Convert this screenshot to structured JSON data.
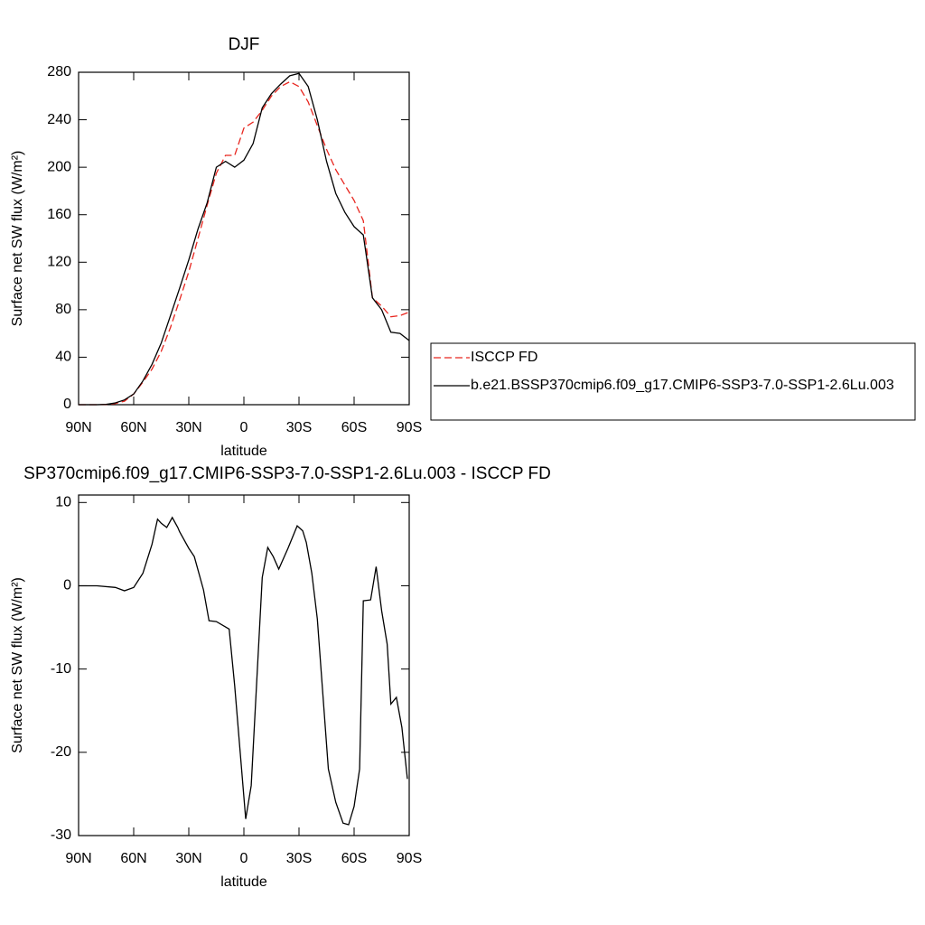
{
  "chart_data": [
    {
      "type": "line",
      "title": "DJF",
      "xlabel": "latitude",
      "ylabel": "Surface net SW flux (W/m²)",
      "x": [
        90,
        85,
        80,
        75,
        70,
        65,
        60,
        55,
        50,
        45,
        40,
        35,
        30,
        25,
        20,
        15,
        10,
        5,
        0,
        -5,
        -10,
        -15,
        -20,
        -25,
        -30,
        -35,
        -40,
        -45,
        -50,
        -55,
        -60,
        -65,
        -70,
        -75,
        -80,
        -85,
        -90
      ],
      "series": [
        {
          "name": "ISCCP FD",
          "color": "#e8261f",
          "dash": true,
          "values": [
            0,
            0,
            0,
            0.2,
            1,
            3,
            9,
            19,
            30,
            45,
            65,
            88,
            112,
            140,
            168,
            195,
            210,
            210,
            233,
            238,
            248,
            260,
            268,
            272,
            268,
            255,
            235,
            215,
            198,
            185,
            172,
            155,
            90,
            83,
            74,
            75,
            78
          ]
        },
        {
          "name": "b.e21.BSSP370cmip6.f09_g17.CMIP6-SSP3-7.0-SSP1-2.6Lu.003",
          "color": "#000000",
          "dash": false,
          "values": [
            0,
            0,
            0,
            0.3,
            1.5,
            4,
            9,
            20,
            34,
            52,
            75,
            98,
            122,
            148,
            170,
            200,
            205,
            200,
            206,
            220,
            250,
            262,
            270,
            277,
            279,
            268,
            240,
            205,
            178,
            162,
            150,
            143,
            90,
            80,
            61,
            60,
            54
          ]
        }
      ],
      "xlim": [
        90,
        -90
      ],
      "xticks": [
        {
          "value": 90,
          "label": "90N"
        },
        {
          "value": 60,
          "label": "60N"
        },
        {
          "value": 30,
          "label": "30N"
        },
        0,
        {
          "value": -30,
          "label": "30S"
        },
        {
          "value": -60,
          "label": "60S"
        },
        {
          "value": -90,
          "label": "90S"
        }
      ],
      "ylim": [
        0,
        280
      ],
      "yticks": [
        0,
        40,
        80,
        120,
        160,
        200,
        240,
        280
      ],
      "legend": "right"
    },
    {
      "type": "line",
      "title": "SP370cmip6.f09_g17.CMIP6-SSP3-7.0-SSP1-2.6Lu.003 - ISCCP FD",
      "xlabel": "latitude",
      "ylabel": "Surface net SW flux (W/m²)",
      "x": [
        90,
        80,
        70,
        65,
        60,
        55,
        50,
        47,
        45,
        42,
        39,
        36,
        35,
        30,
        27,
        22,
        19,
        15,
        8,
        5,
        2,
        -1,
        -4,
        -10,
        -13,
        -16,
        -19,
        -24,
        -29,
        -32,
        -34,
        -37,
        -40,
        -43,
        -46,
        -50,
        -54,
        -57,
        -60,
        -63,
        -65,
        -69,
        -72,
        -75,
        -78,
        -80,
        -83,
        -86,
        -89
      ],
      "values": [
        0,
        0,
        -0.2,
        -0.6,
        -0.2,
        1.5,
        5,
        8,
        7.5,
        7,
        8.2,
        7,
        6.5,
        4.5,
        3.5,
        -0.5,
        -4.2,
        -4.3,
        -5.2,
        -12,
        -20,
        -28,
        -24,
        1,
        4.6,
        3.5,
        2,
        4.5,
        7.2,
        6.6,
        5.2,
        1.5,
        -4,
        -13,
        -22,
        -26,
        -28.5,
        -28.7,
        -26.5,
        -22,
        -1.8,
        -1.7,
        2.3,
        -3,
        -7,
        -14.2,
        -13.4,
        -17,
        -23.2
      ],
      "color": "#000000",
      "xlim": [
        90,
        -90
      ],
      "xticks": [
        {
          "value": 90,
          "label": "90N"
        },
        {
          "value": 60,
          "label": "60N"
        },
        {
          "value": 30,
          "label": "30N"
        },
        0,
        {
          "value": -30,
          "label": "30S"
        },
        {
          "value": -60,
          "label": "60S"
        },
        {
          "value": -90,
          "label": "90S"
        }
      ],
      "ylim": [
        -30,
        10.9
      ],
      "yticks": [
        -30,
        -20,
        -10,
        0,
        10
      ]
    }
  ]
}
